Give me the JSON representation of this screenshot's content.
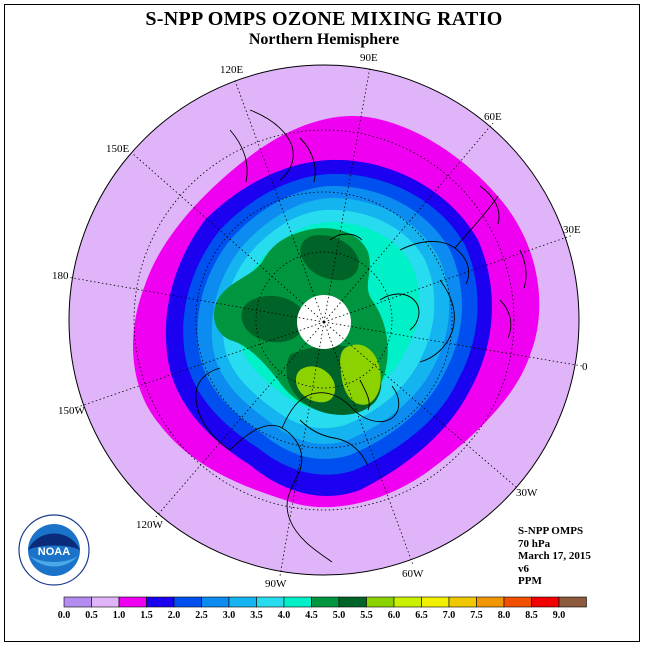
{
  "title": "S-NPP OMPS OZONE MIXING RATIO",
  "subtitle": "Northern Hemisphere",
  "longitude_labels": [
    "90E",
    "60E",
    "30E",
    "0",
    "30W",
    "60W",
    "90W",
    "120W",
    "150W",
    "180",
    "150E",
    "120E"
  ],
  "info": {
    "instrument": "S-NPP OMPS",
    "level": "70 hPa",
    "date": "March 17, 2015",
    "version": "v6",
    "units": "PPM"
  },
  "logo": {
    "name": "noaa-logo",
    "text": "NOAA"
  },
  "colorbar": {
    "ticks": [
      "0.0",
      "0.5",
      "1.0",
      "1.5",
      "2.0",
      "2.5",
      "3.0",
      "3.5",
      "4.0",
      "4.5",
      "5.0",
      "5.5",
      "6.0",
      "6.5",
      "7.0",
      "7.5",
      "8.0",
      "8.5",
      "9.0"
    ],
    "colors": [
      "#b48cf0",
      "#e0b4f8",
      "#f000f0",
      "#1c00f0",
      "#0050f0",
      "#0c8cf0",
      "#14b4f0",
      "#28dcf0",
      "#00f0c8",
      "#009640",
      "#006428",
      "#8cd200",
      "#c8f000",
      "#f0f000",
      "#f0c800",
      "#f09600",
      "#f05000",
      "#f00000",
      "#8c5a3c"
    ]
  },
  "map_colors": {
    "range_1_0_1_5": "#e0b4f8",
    "range_1_5_2_0": "#f000f0",
    "range_2_0_2_5": "#1c00f0",
    "range_2_5_3_0": "#0050f0",
    "range_3_0_3_5": "#0c8cf0",
    "range_3_5_4_0": "#14b4f0",
    "range_4_0_4_5": "#28dcf0",
    "range_4_5_5_0": "#00f0c8",
    "range_5_0_5_5": "#009640",
    "range_5_5_6_0": "#006428",
    "range_6_0_6_5": "#8cd200"
  }
}
